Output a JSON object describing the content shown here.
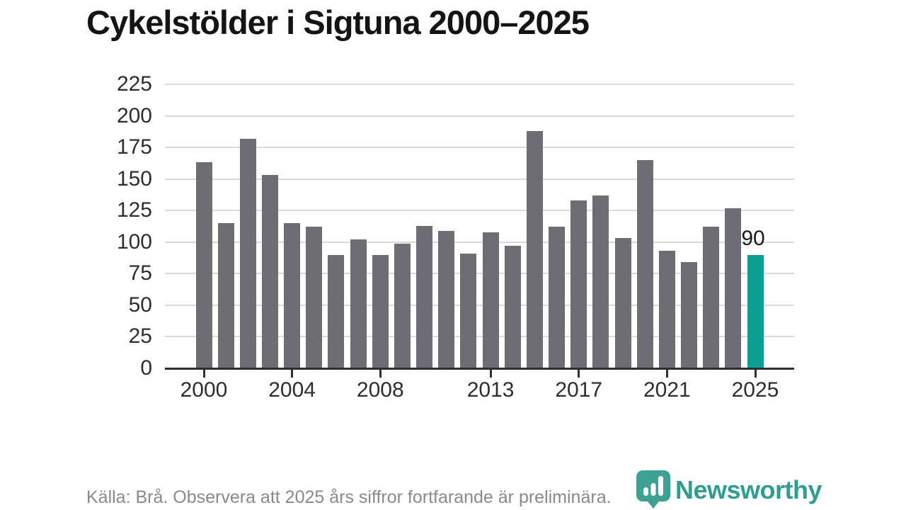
{
  "title": "Cykelstölder i Sigtuna 2000–2025",
  "footer": {
    "source_note": "Källa: Brå. Observera att 2025 års siffror fortfarande är preliminära.",
    "brand_name": "Newsworthy",
    "brand_icon": "newsworthy-speech-bubble-bar-chart-icon"
  },
  "colors": {
    "bar": "#6e6d73",
    "bar_highlight": "#0d9e96",
    "grid": "#dadada",
    "axis": "#2f2f2f",
    "tick_label": "#2e2e2e",
    "title_text": "#141414",
    "annotation_text": "#1a1a1a",
    "footer_text": "#8a8a8a",
    "brand": "#2f9e92"
  },
  "chart_data": {
    "type": "bar",
    "title": "Cykelstölder i Sigtuna 2000–2025",
    "xlabel": "",
    "ylabel": "",
    "categories": [
      2000,
      2001,
      2002,
      2003,
      2004,
      2005,
      2006,
      2007,
      2008,
      2009,
      2010,
      2011,
      2012,
      2013,
      2014,
      2015,
      2016,
      2017,
      2018,
      2019,
      2020,
      2021,
      2022,
      2023,
      2024,
      2025
    ],
    "values": [
      163,
      115,
      182,
      153,
      115,
      112,
      90,
      102,
      90,
      99,
      113,
      109,
      91,
      108,
      97,
      188,
      112,
      133,
      137,
      103,
      165,
      93,
      84,
      112,
      127,
      90
    ],
    "highlight_category": 2025,
    "annotation": {
      "category": 2025,
      "label": "90"
    },
    "ylim": [
      0,
      225
    ],
    "ytick_step": 25,
    "yticks": [
      0,
      25,
      50,
      75,
      100,
      125,
      150,
      175,
      200,
      225
    ],
    "xticks": [
      2000,
      2004,
      2008,
      2013,
      2017,
      2021,
      2025
    ],
    "grid": "horizontal",
    "legend": "none"
  }
}
